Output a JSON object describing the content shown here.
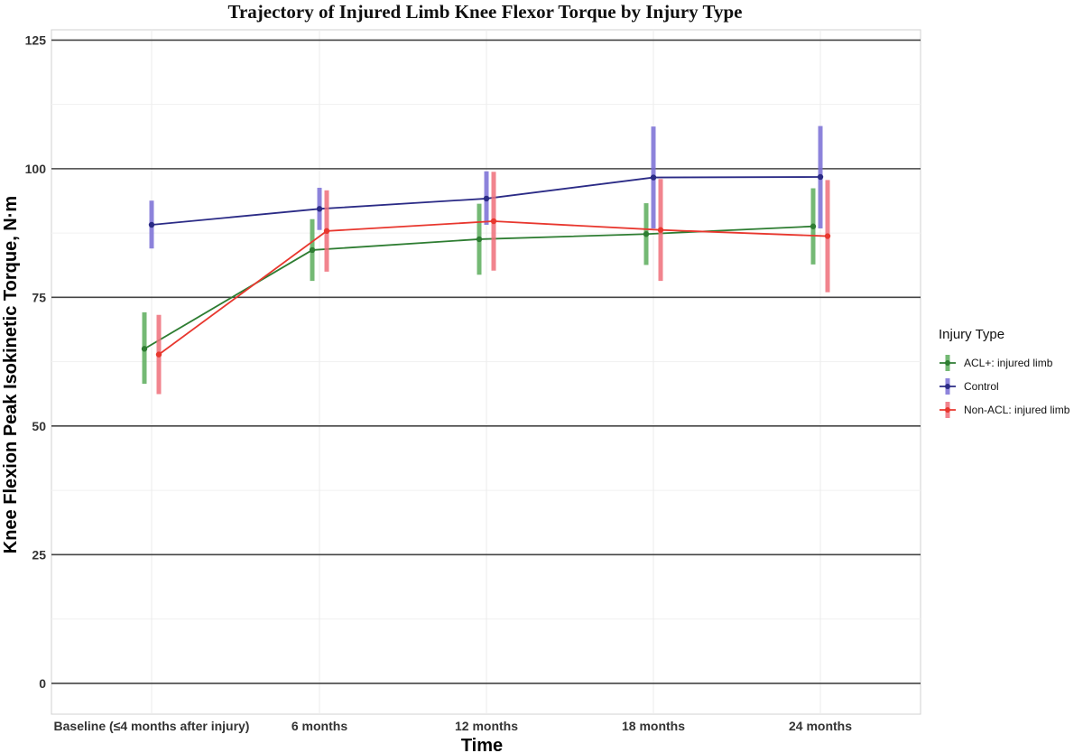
{
  "chart_data": {
    "type": "line",
    "title": "Trajectory of Injured Limb Knee Flexor Torque by Injury Type",
    "xlabel": "Time",
    "ylabel": "Knee Flexion Peak Isokinetic Torque, N·m",
    "categories": [
      "Baseline (≤4 months after injury)",
      "6 months",
      "12 months",
      "18 months",
      "24 months"
    ],
    "ylim": [
      -6,
      127
    ],
    "yticks": [
      0,
      25,
      50,
      75,
      100,
      125
    ],
    "grid": true,
    "legend": {
      "title": "Injury Type",
      "position": "right"
    },
    "series": [
      {
        "name": "ACL+: injured limb",
        "color": "#2e7d32",
        "bar_color": "#5cad5c",
        "values": [
          65,
          84.2,
          86.3,
          87.3,
          88.8
        ],
        "lower": [
          58.2,
          78.2,
          79.4,
          81.3,
          81.4
        ],
        "upper": [
          72.1,
          90.2,
          93.2,
          93.3,
          96.2
        ]
      },
      {
        "name": "Control",
        "color": "#2b2b86",
        "bar_color": "#7a6fd6",
        "values": [
          89.1,
          92.2,
          94.2,
          98.3,
          98.4
        ],
        "lower": [
          84.5,
          88.1,
          89.1,
          88.4,
          88.4
        ],
        "upper": [
          93.8,
          96.3,
          99.5,
          108.2,
          108.3
        ]
      },
      {
        "name": "Non-ACL: injured limb",
        "color": "#e8372e",
        "bar_color": "#ef6f7a",
        "values": [
          63.9,
          87.9,
          89.8,
          88.1,
          86.9
        ],
        "lower": [
          56.2,
          80.0,
          80.2,
          78.2,
          76.0
        ],
        "upper": [
          71.6,
          95.8,
          99.4,
          98.0,
          97.8
        ]
      }
    ]
  }
}
